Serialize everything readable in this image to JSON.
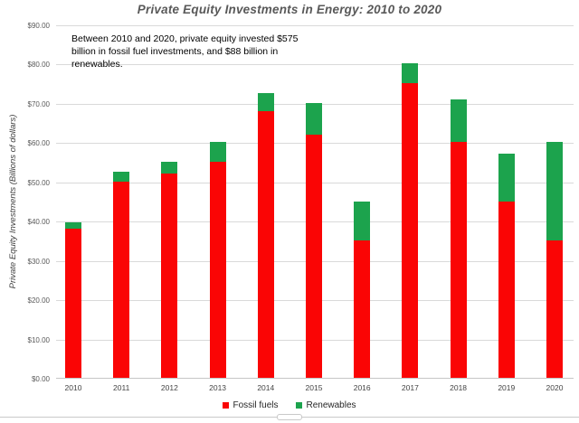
{
  "title": "Private Equity Investments in Energy: 2010 to 2020",
  "annotation": "Between 2010 and 2020, private equity invested $575 billion in fossil fuel investments, and $88 billion in renewables.",
  "colors": {
    "fossil_fuels": "#FA0505",
    "renewables": "#1CA34D",
    "gridline": "#D9D9D9",
    "axis_line": "#C6C6C6",
    "title_text": "#595959",
    "tick_text": "#595959",
    "annotation_text": "#000000"
  },
  "legend": {
    "items": [
      {
        "label": "Fossil fuels",
        "color": "#FA0505"
      },
      {
        "label": "Renewables",
        "color": "#1CA34D"
      }
    ]
  },
  "chart_data": {
    "type": "bar",
    "stacked": true,
    "title": "Private Equity Investments in Energy: 2010 to 2020",
    "xlabel": "",
    "ylabel": "Private Equity Investments (Billions of dollars)",
    "categories": [
      "2010",
      "2011",
      "2012",
      "2013",
      "2014",
      "2015",
      "2016",
      "2017",
      "2018",
      "2019",
      "2020"
    ],
    "series": [
      {
        "name": "Fossil fuels",
        "color": "#FA0505",
        "values": [
          38,
          50,
          52,
          55,
          68,
          62,
          35,
          75,
          60,
          45,
          35
        ]
      },
      {
        "name": "Renewables",
        "color": "#1CA34D",
        "values": [
          1.5,
          2.5,
          3,
          5,
          4.5,
          8,
          10,
          5,
          11,
          12,
          25
        ]
      }
    ],
    "totals": [
      39.5,
      52.5,
      55,
      60,
      72.5,
      70,
      45,
      80,
      71,
      57,
      60
    ],
    "ylim": [
      0,
      90
    ],
    "ytick_step": 10,
    "ytick_prefix": "$",
    "ytick_decimals": 2,
    "grid": true,
    "legend_position": "bottom"
  }
}
